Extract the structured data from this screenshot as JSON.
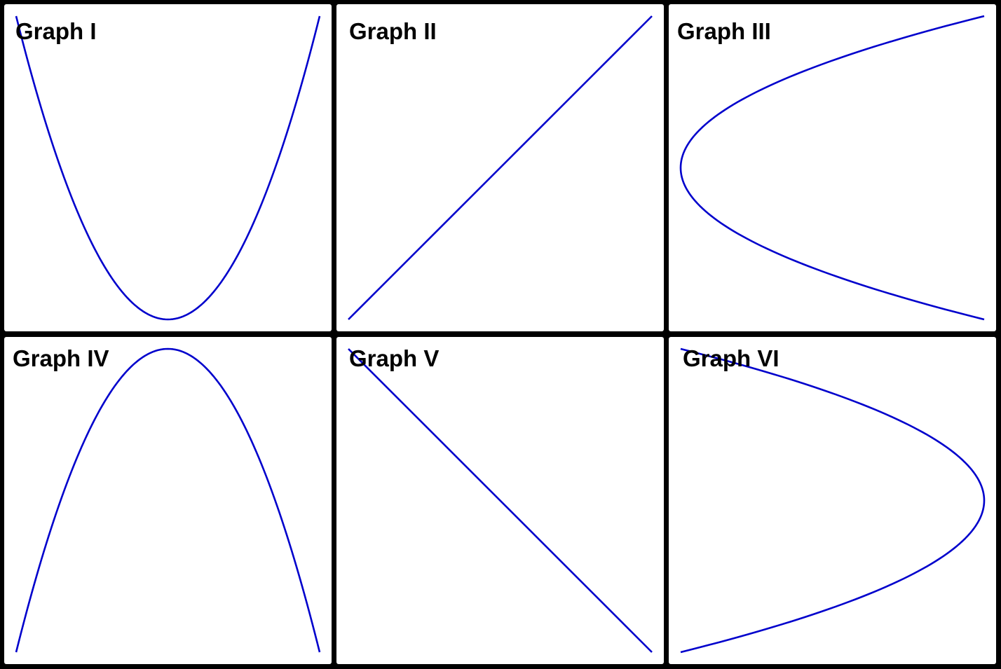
{
  "accent_color": "#0000cc",
  "panels": [
    {
      "title": "Graph I",
      "curve": "upward-parabola"
    },
    {
      "title": "Graph II",
      "curve": "increasing-line"
    },
    {
      "title": "Graph III",
      "curve": "right-opening-parabola"
    },
    {
      "title": "Graph IV",
      "curve": "downward-parabola"
    },
    {
      "title": "Graph V",
      "curve": "decreasing-line"
    },
    {
      "title": "Graph VI",
      "curve": "left-opening-parabola"
    }
  ]
}
